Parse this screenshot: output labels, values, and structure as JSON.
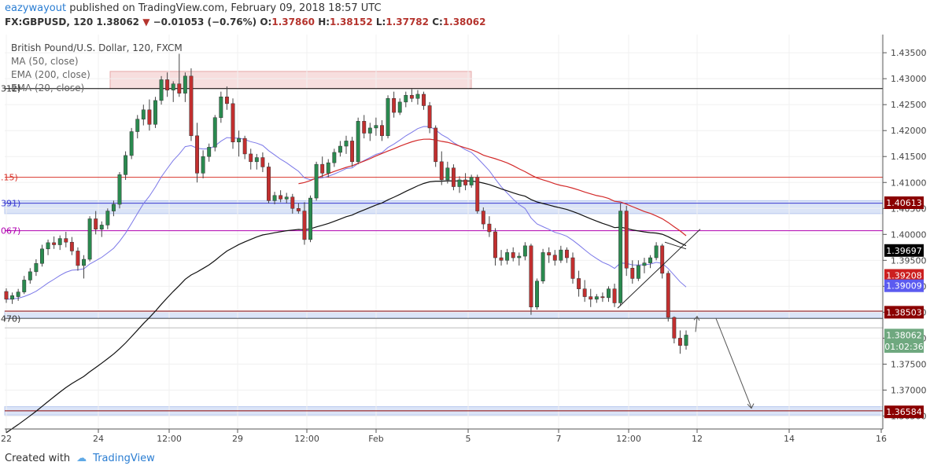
{
  "header": {
    "author": "eazywayout",
    "published": " published on TradingView.com, February 09, 2018 18:57 UTC",
    "symbol": "FX:GBPUSD, 120",
    "last": "1.38062",
    "change": "−0.01053 (−0.76%)",
    "o_label": "O:",
    "o": "1.37860",
    "h_label": "H:",
    "h": "1.38152",
    "l_label": "L:",
    "l": "1.37782",
    "c_label": "C:",
    "c": "1.38062"
  },
  "footer": {
    "created_with": "Created with",
    "brand": "TradingView"
  },
  "chart_data": {
    "type": "candlestick",
    "title": "British Pound/U.S. Dollar, 120, FXCM",
    "legend": [
      "MA (50, close)",
      "EMA (200, close)",
      "EMA (20, close)"
    ],
    "y_ticks": [
      "1.43500",
      "1.43000",
      "1.42500",
      "1.42000",
      "1.41500",
      "1.41000",
      "1.40500",
      "1.40000",
      "1.39500",
      "1.39000",
      "1.38500",
      "1.38000",
      "1.37500",
      "1.37000",
      "1.36500"
    ],
    "x_ticks": [
      "22",
      "24",
      "12:00",
      "29",
      "12:00",
      "Feb",
      "5",
      "7",
      "12:00",
      "12",
      "14",
      "16"
    ],
    "ylim": [
      1.3625,
      1.4385
    ],
    "price_labels": [
      {
        "value": "1.40613",
        "color": "#8b0000"
      },
      {
        "value": "1.39697",
        "color": "#000000"
      },
      {
        "value": "1.39208",
        "color": "#cc1f1f"
      },
      {
        "value": "1.39009",
        "color": "#5b5bf0"
      },
      {
        "value": "1.38503",
        "color": "#8b0000"
      },
      {
        "value": "1.38062",
        "color": "#6fa87f"
      },
      {
        "value": "01:02:36",
        "color": "#6fa87f"
      },
      {
        "value": "1.36584",
        "color": "#8b0000"
      }
    ],
    "left_labels": [
      {
        "text": "312)",
        "color": "#333333"
      },
      {
        "text": ".15)",
        "color": "#d9342b"
      },
      {
        "text": "391)",
        "color": "#3a3ad0"
      },
      {
        "text": "067)",
        "color": "#b000b0"
      },
      {
        "text": "470)",
        "color": "#333333"
      }
    ],
    "candles_ohlc": [
      [
        1.389,
        1.3896,
        1.3868,
        1.3875
      ],
      [
        1.3875,
        1.3888,
        1.3866,
        1.3882
      ],
      [
        1.388,
        1.3895,
        1.3872,
        1.3889
      ],
      [
        1.3889,
        1.392,
        1.3885,
        1.3912
      ],
      [
        1.3912,
        1.3935,
        1.3905,
        1.3928
      ],
      [
        1.3928,
        1.3952,
        1.392,
        1.3944
      ],
      [
        1.3944,
        1.398,
        1.3938,
        1.3972
      ],
      [
        1.3972,
        1.399,
        1.396,
        1.3984
      ],
      [
        1.3984,
        1.3996,
        1.3972,
        1.398
      ],
      [
        1.398,
        1.3998,
        1.397,
        1.3992
      ],
      [
        1.3992,
        1.4005,
        1.3975,
        1.3985
      ],
      [
        1.3985,
        1.3995,
        1.396,
        1.3968
      ],
      [
        1.3968,
        1.3975,
        1.393,
        1.394
      ],
      [
        1.394,
        1.396,
        1.3915,
        1.3952
      ],
      [
        1.3952,
        1.4035,
        1.3948,
        1.403
      ],
      [
        1.403,
        1.4045,
        1.4,
        1.401
      ],
      [
        1.401,
        1.4025,
        1.3995,
        1.4018
      ],
      [
        1.4018,
        1.405,
        1.401,
        1.4045
      ],
      [
        1.4045,
        1.4065,
        1.4035,
        1.4058
      ],
      [
        1.4058,
        1.412,
        1.405,
        1.4115
      ],
      [
        1.4115,
        1.416,
        1.4105,
        1.4152
      ],
      [
        1.4152,
        1.4205,
        1.4145,
        1.4198
      ],
      [
        1.4198,
        1.423,
        1.4185,
        1.4222
      ],
      [
        1.4222,
        1.425,
        1.421,
        1.424
      ],
      [
        1.424,
        1.426,
        1.42,
        1.4212
      ],
      [
        1.4212,
        1.4265,
        1.4205,
        1.4258
      ],
      [
        1.4258,
        1.4305,
        1.425,
        1.4298
      ],
      [
        1.4298,
        1.4312,
        1.4265,
        1.4278
      ],
      [
        1.4278,
        1.4295,
        1.4255,
        1.429
      ],
      [
        1.429,
        1.4348,
        1.4265,
        1.4272
      ],
      [
        1.4272,
        1.4312,
        1.4255,
        1.4305
      ],
      [
        1.4305,
        1.432,
        1.418,
        1.419
      ],
      [
        1.419,
        1.4215,
        1.41,
        1.4118
      ],
      [
        1.4118,
        1.4162,
        1.4108,
        1.415
      ],
      [
        1.415,
        1.4175,
        1.414,
        1.4168
      ],
      [
        1.4168,
        1.423,
        1.416,
        1.4225
      ],
      [
        1.4225,
        1.4275,
        1.4215,
        1.4265
      ],
      [
        1.4265,
        1.4285,
        1.424,
        1.4252
      ],
      [
        1.4252,
        1.4262,
        1.4165,
        1.4178
      ],
      [
        1.4178,
        1.42,
        1.415,
        1.4185
      ],
      [
        1.4185,
        1.419,
        1.4145,
        1.4155
      ],
      [
        1.4155,
        1.4165,
        1.4125,
        1.414
      ],
      [
        1.414,
        1.4155,
        1.4125,
        1.4148
      ],
      [
        1.4148,
        1.4158,
        1.412,
        1.413
      ],
      [
        1.413,
        1.4138,
        1.406,
        1.4065
      ],
      [
        1.4065,
        1.4082,
        1.4058,
        1.4075
      ],
      [
        1.4075,
        1.4085,
        1.4062,
        1.4068
      ],
      [
        1.4068,
        1.408,
        1.406,
        1.4072
      ],
      [
        1.4072,
        1.4078,
        1.404,
        1.405
      ],
      [
        1.405,
        1.406,
        1.404,
        1.4045
      ],
      [
        1.4045,
        1.4062,
        1.398,
        1.399
      ],
      [
        1.399,
        1.4075,
        1.3985,
        1.407
      ],
      [
        1.407,
        1.414,
        1.4065,
        1.4135
      ],
      [
        1.4135,
        1.415,
        1.411,
        1.4118
      ],
      [
        1.4118,
        1.4145,
        1.411,
        1.4138
      ],
      [
        1.4138,
        1.4165,
        1.413,
        1.4158
      ],
      [
        1.4158,
        1.418,
        1.415,
        1.417
      ],
      [
        1.417,
        1.419,
        1.4155,
        1.418
      ],
      [
        1.418,
        1.4188,
        1.413,
        1.414
      ],
      [
        1.414,
        1.4225,
        1.4135,
        1.4218
      ],
      [
        1.4218,
        1.423,
        1.4185,
        1.4195
      ],
      [
        1.4195,
        1.4215,
        1.418,
        1.4205
      ],
      [
        1.4205,
        1.4225,
        1.419,
        1.421
      ],
      [
        1.421,
        1.422,
        1.418,
        1.419
      ],
      [
        1.419,
        1.4268,
        1.4185,
        1.4262
      ],
      [
        1.4262,
        1.4275,
        1.4225,
        1.4235
      ],
      [
        1.4235,
        1.4262,
        1.423,
        1.4255
      ],
      [
        1.4255,
        1.4275,
        1.4245,
        1.4268
      ],
      [
        1.4268,
        1.428,
        1.4255,
        1.4262
      ],
      [
        1.4262,
        1.4278,
        1.425,
        1.427
      ],
      [
        1.427,
        1.4275,
        1.424,
        1.4248
      ],
      [
        1.4248,
        1.4255,
        1.4195,
        1.4205
      ],
      [
        1.4205,
        1.421,
        1.413,
        1.414
      ],
      [
        1.414,
        1.416,
        1.4095,
        1.4105
      ],
      [
        1.4105,
        1.414,
        1.4098,
        1.4128
      ],
      [
        1.4128,
        1.4135,
        1.4085,
        1.4092
      ],
      [
        1.4092,
        1.4112,
        1.408,
        1.4105
      ],
      [
        1.4105,
        1.4118,
        1.4085,
        1.4095
      ],
      [
        1.4095,
        1.4115,
        1.409,
        1.411
      ],
      [
        1.411,
        1.4115,
        1.404,
        1.4045
      ],
      [
        1.4045,
        1.4052,
        1.401,
        1.402
      ],
      [
        1.402,
        1.4035,
        1.3995,
        1.4005
      ],
      [
        1.4005,
        1.4012,
        1.394,
        1.3955
      ],
      [
        1.3955,
        1.397,
        1.394,
        1.395
      ],
      [
        1.395,
        1.3972,
        1.3942,
        1.3965
      ],
      [
        1.3965,
        1.3975,
        1.3948,
        1.3955
      ],
      [
        1.3955,
        1.3965,
        1.394,
        1.3958
      ],
      [
        1.3958,
        1.3985,
        1.395,
        1.3978
      ],
      [
        1.3978,
        1.3982,
        1.3845,
        1.386
      ],
      [
        1.386,
        1.3915,
        1.3855,
        1.391
      ],
      [
        1.391,
        1.3972,
        1.3905,
        1.3965
      ],
      [
        1.3965,
        1.3975,
        1.3945,
        1.396
      ],
      [
        1.396,
        1.397,
        1.394,
        1.395
      ],
      [
        1.395,
        1.3978,
        1.3945,
        1.397
      ],
      [
        1.397,
        1.3975,
        1.3945,
        1.3955
      ],
      [
        1.3955,
        1.3965,
        1.3905,
        1.3915
      ],
      [
        1.3915,
        1.393,
        1.388,
        1.3895
      ],
      [
        1.3895,
        1.3912,
        1.387,
        1.388
      ],
      [
        1.388,
        1.3895,
        1.386,
        1.3875
      ],
      [
        1.3875,
        1.3885,
        1.3868,
        1.388
      ],
      [
        1.388,
        1.3888,
        1.387,
        1.3878
      ],
      [
        1.3878,
        1.39,
        1.387,
        1.3895
      ],
      [
        1.3895,
        1.3905,
        1.386,
        1.3868
      ],
      [
        1.3868,
        1.406,
        1.3862,
        1.4045
      ],
      [
        1.4045,
        1.4055,
        1.392,
        1.3935
      ],
      [
        1.3935,
        1.395,
        1.3905,
        1.3915
      ],
      [
        1.3915,
        1.395,
        1.391,
        1.394
      ],
      [
        1.394,
        1.3955,
        1.3925,
        1.3945
      ],
      [
        1.3945,
        1.396,
        1.3935,
        1.3955
      ],
      [
        1.3955,
        1.3985,
        1.395,
        1.3978
      ],
      [
        1.3978,
        1.3982,
        1.3915,
        1.3925
      ],
      [
        1.3925,
        1.393,
        1.3832,
        1.384
      ],
      [
        1.384,
        1.3842,
        1.379,
        1.38
      ],
      [
        1.38,
        1.3815,
        1.377,
        1.3786
      ],
      [
        1.3786,
        1.3815,
        1.3778,
        1.3806
      ]
    ]
  }
}
